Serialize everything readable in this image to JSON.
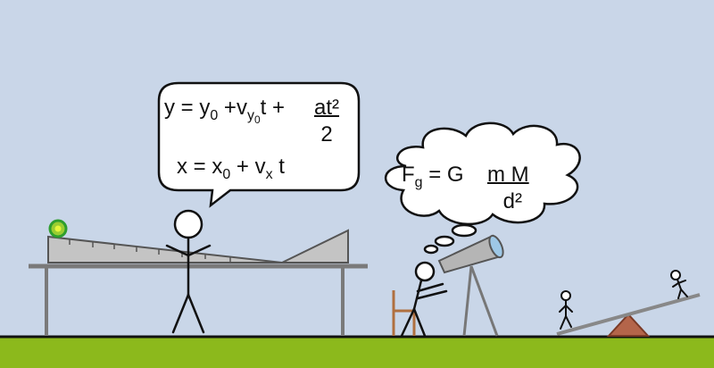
{
  "speech_bubble": {
    "eq_y": {
      "lhs": "y = y",
      "y0_sub": "0",
      "plus_v": " +v",
      "vy_sub": "y",
      "vy0_sub": "0",
      "t_plus": "t + ",
      "numerator": "at²",
      "denominator": "2"
    },
    "eq_x": {
      "lhs": "x = x",
      "x0_sub": "0",
      "plus_v": " + v",
      "vx_sub": "x",
      "t": " t"
    }
  },
  "thought_bubble": {
    "force": "F",
    "force_sub": "g",
    "equals_g": " = G ",
    "numerator": "m M",
    "denominator": "d²"
  },
  "colors": {
    "sky": "#c9d6e8",
    "ground": "#8cb91c",
    "ramp": "#c4c4c4",
    "ball": "#9acd32",
    "ball_ring": "#2e9e2e",
    "seesaw_base": "#b4654a",
    "chair": "#b07040",
    "telescope": "#b5b5b5",
    "telescope_lens": "#9ec8e6"
  },
  "icons": [
    "stick-figure-icon",
    "ball-icon",
    "telescope-icon",
    "seesaw-icon",
    "chair-icon",
    "table-icon",
    "ramp-icon"
  ]
}
